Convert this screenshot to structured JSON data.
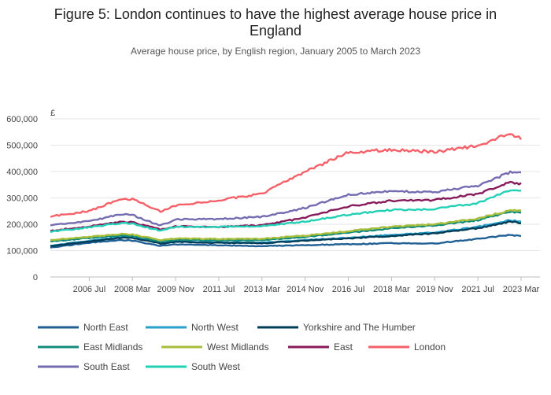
{
  "chart_data": {
    "type": "line",
    "title_line1": "Figure 5: London continues to have the highest average house price in",
    "title_line2": "England",
    "subtitle": "Average house price, by English region, January 2005 to March 2023",
    "y_unit": "£",
    "ylim": [
      0,
      600000
    ],
    "y_ticks": [
      "0",
      "100,000",
      "200,000",
      "300,000",
      "400,000",
      "500,000",
      "600,000"
    ],
    "x_ticks": [
      "2006 Jul",
      "2008 Mar",
      "2009 Nov",
      "2011 Jul",
      "2013 Mar",
      "2014 Nov",
      "2016 Jul",
      "2018 Mar",
      "2019 Nov",
      "2021 Jul",
      "2023 Mar"
    ],
    "grid": true,
    "legend_position": "bottom",
    "series": [
      {
        "name": "North East",
        "color": "#206095",
        "points": [
          [
            "2005-01",
            112000
          ],
          [
            "2006-07",
            130000
          ],
          [
            "2007-10",
            140000
          ],
          [
            "2008-03",
            138000
          ],
          [
            "2009-04",
            118000
          ],
          [
            "2009-11",
            123000
          ],
          [
            "2011-07",
            120000
          ],
          [
            "2013-03",
            117000
          ],
          [
            "2014-11",
            121000
          ],
          [
            "2016-07",
            124000
          ],
          [
            "2018-03",
            128000
          ],
          [
            "2019-11",
            127000
          ],
          [
            "2021-07",
            145000
          ],
          [
            "2022-10",
            160000
          ],
          [
            "2023-03",
            155000
          ]
        ]
      },
      {
        "name": "North West",
        "color": "#27a0cc",
        "points": [
          [
            "2005-01",
            118000
          ],
          [
            "2006-07",
            138000
          ],
          [
            "2007-10",
            152000
          ],
          [
            "2008-03",
            150000
          ],
          [
            "2009-04",
            128000
          ],
          [
            "2009-11",
            135000
          ],
          [
            "2011-07",
            132000
          ],
          [
            "2013-03",
            130000
          ],
          [
            "2014-11",
            140000
          ],
          [
            "2016-07",
            149000
          ],
          [
            "2018-03",
            160000
          ],
          [
            "2019-11",
            168000
          ],
          [
            "2021-07",
            190000
          ],
          [
            "2022-10",
            215000
          ],
          [
            "2023-03",
            210000
          ]
        ]
      },
      {
        "name": "Yorkshire and The Humber",
        "color": "#003c57",
        "points": [
          [
            "2005-01",
            117000
          ],
          [
            "2006-07",
            135000
          ],
          [
            "2007-10",
            149000
          ],
          [
            "2008-03",
            148000
          ],
          [
            "2009-04",
            127000
          ],
          [
            "2009-11",
            133000
          ],
          [
            "2011-07",
            130000
          ],
          [
            "2013-03",
            128000
          ],
          [
            "2014-11",
            138000
          ],
          [
            "2016-07",
            146000
          ],
          [
            "2018-03",
            156000
          ],
          [
            "2019-11",
            165000
          ],
          [
            "2021-07",
            185000
          ],
          [
            "2022-10",
            210000
          ],
          [
            "2023-03",
            205000
          ]
        ]
      },
      {
        "name": "East Midlands",
        "color": "#118c7b",
        "points": [
          [
            "2005-01",
            135000
          ],
          [
            "2006-07",
            148000
          ],
          [
            "2007-10",
            158000
          ],
          [
            "2008-03",
            156000
          ],
          [
            "2009-04",
            135000
          ],
          [
            "2009-11",
            141000
          ],
          [
            "2011-07",
            139000
          ],
          [
            "2013-03",
            140000
          ],
          [
            "2014-11",
            152000
          ],
          [
            "2016-07",
            168000
          ],
          [
            "2018-03",
            185000
          ],
          [
            "2019-11",
            195000
          ],
          [
            "2021-07",
            215000
          ],
          [
            "2022-10",
            248000
          ],
          [
            "2023-03",
            245000
          ]
        ]
      },
      {
        "name": "West Midlands",
        "color": "#a8bd3a",
        "points": [
          [
            "2005-01",
            140000
          ],
          [
            "2006-07",
            152000
          ],
          [
            "2007-10",
            163000
          ],
          [
            "2008-03",
            161000
          ],
          [
            "2009-04",
            140000
          ],
          [
            "2009-11",
            146000
          ],
          [
            "2011-07",
            144000
          ],
          [
            "2013-03",
            145000
          ],
          [
            "2014-11",
            157000
          ],
          [
            "2016-07",
            174000
          ],
          [
            "2018-03",
            190000
          ],
          [
            "2019-11",
            200000
          ],
          [
            "2021-07",
            222000
          ],
          [
            "2022-10",
            253000
          ],
          [
            "2023-03",
            250000
          ]
        ]
      },
      {
        "name": "East",
        "color": "#871a5b",
        "points": [
          [
            "2005-01",
            175000
          ],
          [
            "2006-07",
            192000
          ],
          [
            "2007-10",
            209000
          ],
          [
            "2008-03",
            207000
          ],
          [
            "2009-04",
            180000
          ],
          [
            "2009-11",
            192000
          ],
          [
            "2011-07",
            190000
          ],
          [
            "2013-03",
            196000
          ],
          [
            "2014-11",
            225000
          ],
          [
            "2016-07",
            268000
          ],
          [
            "2018-03",
            290000
          ],
          [
            "2019-11",
            292000
          ],
          [
            "2021-07",
            315000
          ],
          [
            "2022-10",
            360000
          ],
          [
            "2023-03",
            353000
          ]
        ]
      },
      {
        "name": "London",
        "color": "#f66068",
        "points": [
          [
            "2005-01",
            230000
          ],
          [
            "2006-07",
            250000
          ],
          [
            "2007-10",
            297000
          ],
          [
            "2008-03",
            295000
          ],
          [
            "2009-04",
            248000
          ],
          [
            "2009-11",
            270000
          ],
          [
            "2011-07",
            292000
          ],
          [
            "2013-03",
            315000
          ],
          [
            "2014-11",
            400000
          ],
          [
            "2016-07",
            472000
          ],
          [
            "2018-03",
            483000
          ],
          [
            "2019-11",
            475000
          ],
          [
            "2021-07",
            498000
          ],
          [
            "2022-10",
            545000
          ],
          [
            "2023-03",
            527000
          ]
        ]
      },
      {
        "name": "South East",
        "color": "#746cb1",
        "points": [
          [
            "2005-01",
            196000
          ],
          [
            "2006-07",
            212000
          ],
          [
            "2007-10",
            238000
          ],
          [
            "2008-03",
            235000
          ],
          [
            "2009-04",
            195000
          ],
          [
            "2009-11",
            218000
          ],
          [
            "2011-07",
            220000
          ],
          [
            "2013-03",
            228000
          ],
          [
            "2014-11",
            262000
          ],
          [
            "2016-07",
            312000
          ],
          [
            "2018-03",
            325000
          ],
          [
            "2019-11",
            323000
          ],
          [
            "2021-07",
            347000
          ],
          [
            "2022-10",
            398000
          ],
          [
            "2023-03",
            395000
          ]
        ]
      },
      {
        "name": "South West",
        "color": "#22d0b6",
        "points": [
          [
            "2005-01",
            172000
          ],
          [
            "2006-07",
            188000
          ],
          [
            "2007-10",
            205000
          ],
          [
            "2008-03",
            203000
          ],
          [
            "2009-04",
            175000
          ],
          [
            "2009-11",
            190000
          ],
          [
            "2011-07",
            190000
          ],
          [
            "2013-03",
            193000
          ],
          [
            "2014-11",
            210000
          ],
          [
            "2016-07",
            236000
          ],
          [
            "2018-03",
            255000
          ],
          [
            "2019-11",
            258000
          ],
          [
            "2021-07",
            280000
          ],
          [
            "2022-10",
            330000
          ],
          [
            "2023-03",
            327000
          ]
        ]
      }
    ]
  }
}
